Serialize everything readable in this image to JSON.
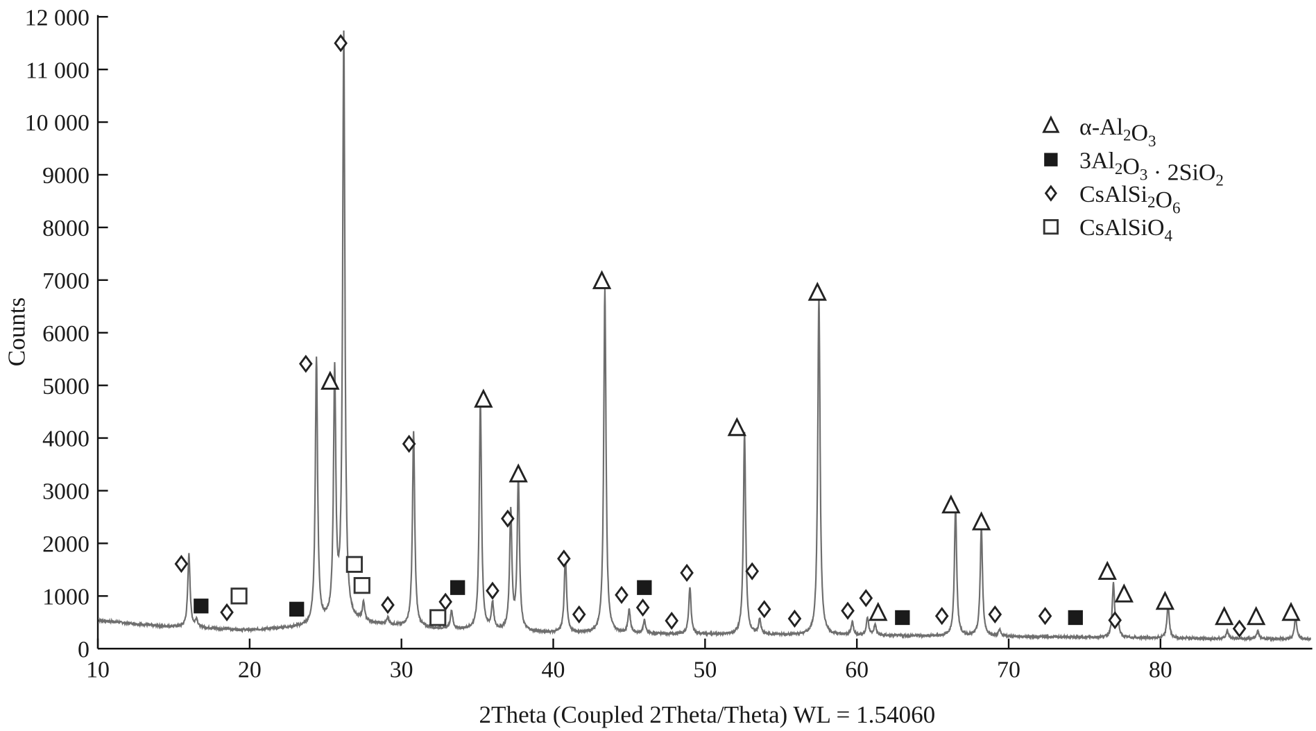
{
  "chart_data": {
    "type": "line",
    "title": "",
    "xlabel": "2Theta (Coupled 2Theta/Theta) WL = 1.54060",
    "ylabel": "Counts",
    "xlim": [
      10,
      90
    ],
    "ylim": [
      0,
      12000
    ],
    "xticks": [
      10,
      20,
      30,
      40,
      50,
      60,
      70,
      80
    ],
    "yticks": [
      0,
      1000,
      2000,
      3000,
      4000,
      5000,
      6000,
      7000,
      8000,
      9000,
      10000,
      11000,
      12000
    ],
    "ytick_labels": [
      "0",
      "1000",
      "2000",
      "3000",
      "4000",
      "5000",
      "6000",
      "7000",
      "8000",
      "9000",
      "10 000",
      "11 000",
      "12 000"
    ],
    "grid": false,
    "line_color": "#6e6e6e",
    "legend_position": "top-right",
    "background": [
      [
        10,
        540
      ],
      [
        14,
        430
      ],
      [
        20,
        350
      ],
      [
        24,
        420
      ],
      [
        26,
        520
      ],
      [
        29,
        450
      ],
      [
        32,
        380
      ],
      [
        40,
        300
      ],
      [
        50,
        270
      ],
      [
        60,
        250
      ],
      [
        70,
        230
      ],
      [
        80,
        200
      ],
      [
        90,
        180
      ]
    ],
    "peaks": [
      [
        16.0,
        1390
      ],
      [
        16.5,
        150
      ],
      [
        24.4,
        5060
      ],
      [
        25.6,
        4660
      ],
      [
        26.2,
        11120
      ],
      [
        27.5,
        350
      ],
      [
        29.1,
        120
      ],
      [
        30.8,
        3700
      ],
      [
        33.3,
        350
      ],
      [
        35.2,
        4340
      ],
      [
        36.0,
        500
      ],
      [
        37.2,
        2270
      ],
      [
        37.7,
        2900
      ],
      [
        40.8,
        1470
      ],
      [
        43.4,
        6540
      ],
      [
        45.0,
        450
      ],
      [
        46.0,
        250
      ],
      [
        49.0,
        900
      ],
      [
        52.6,
        3830
      ],
      [
        53.6,
        280
      ],
      [
        57.5,
        6450
      ],
      [
        59.7,
        250
      ],
      [
        60.7,
        330
      ],
      [
        61.2,
        200
      ],
      [
        66.5,
        2430
      ],
      [
        68.2,
        2070
      ],
      [
        69.4,
        120
      ],
      [
        76.9,
        1020
      ],
      [
        77.2,
        300
      ],
      [
        80.5,
        640
      ],
      [
        84.4,
        150
      ],
      [
        86.4,
        150
      ],
      [
        88.9,
        430
      ]
    ],
    "legend": [
      {
        "marker": "open-triangle",
        "label": "α-Al2O3"
      },
      {
        "marker": "filled-square",
        "label": "3Al2O3 · 2SiO2"
      },
      {
        "marker": "open-diamond",
        "label": "CsAlSi2O6"
      },
      {
        "marker": "open-square",
        "label": "CsAlSiO4"
      }
    ],
    "markers": {
      "open-triangle": [
        [
          25.3,
          5060
        ],
        [
          35.4,
          4720
        ],
        [
          37.7,
          3300
        ],
        [
          43.2,
          6970
        ],
        [
          52.1,
          4180
        ],
        [
          57.4,
          6750
        ],
        [
          61.4,
          670
        ],
        [
          66.2,
          2710
        ],
        [
          68.2,
          2390
        ],
        [
          76.5,
          1450
        ],
        [
          77.6,
          1020
        ],
        [
          80.3,
          880
        ],
        [
          84.2,
          590
        ],
        [
          86.3,
          590
        ],
        [
          88.6,
          670
        ]
      ],
      "filled-square": [
        [
          16.8,
          810
        ],
        [
          23.1,
          750
        ],
        [
          33.7,
          1160
        ],
        [
          46.0,
          1160
        ],
        [
          63.0,
          590
        ],
        [
          74.4,
          590
        ]
      ],
      "open-diamond": [
        [
          15.5,
          1610
        ],
        [
          18.5,
          690
        ],
        [
          23.7,
          5410
        ],
        [
          26.0,
          11500
        ],
        [
          29.1,
          830
        ],
        [
          30.5,
          3890
        ],
        [
          32.9,
          890
        ],
        [
          36.0,
          1100
        ],
        [
          37.0,
          2470
        ],
        [
          40.7,
          1710
        ],
        [
          41.7,
          650
        ],
        [
          44.5,
          1020
        ],
        [
          45.9,
          780
        ],
        [
          47.8,
          530
        ],
        [
          48.8,
          1440
        ],
        [
          53.1,
          1470
        ],
        [
          53.9,
          750
        ],
        [
          55.9,
          570
        ],
        [
          59.4,
          720
        ],
        [
          60.6,
          960
        ],
        [
          65.6,
          620
        ],
        [
          69.1,
          650
        ],
        [
          72.4,
          620
        ],
        [
          77.0,
          540
        ],
        [
          85.2,
          380
        ]
      ],
      "open-square": [
        [
          19.3,
          1000
        ],
        [
          26.9,
          1600
        ],
        [
          27.4,
          1200
        ],
        [
          32.4,
          590
        ]
      ]
    }
  }
}
